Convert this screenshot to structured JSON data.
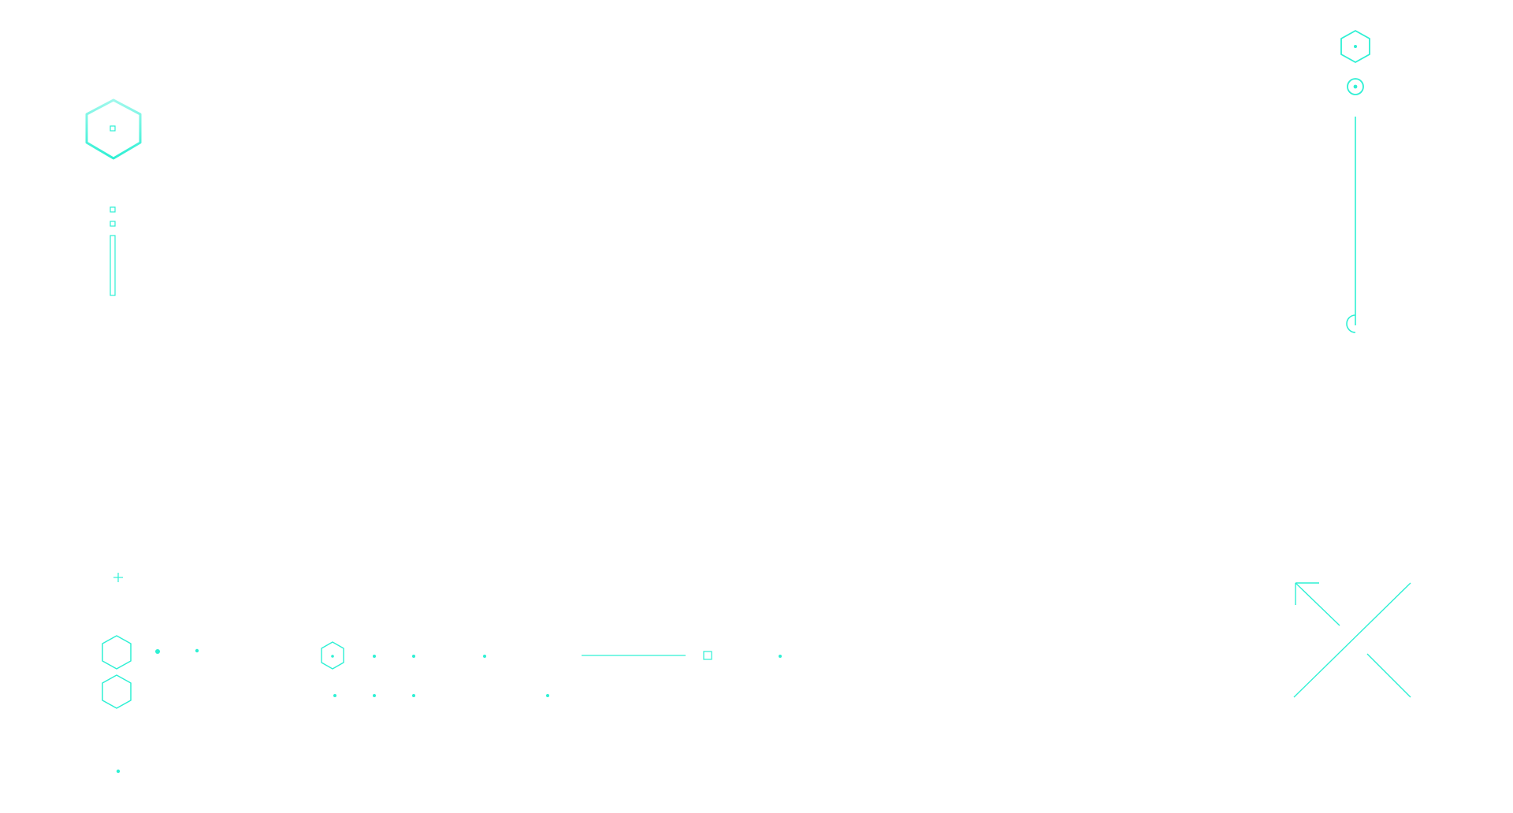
{
  "theme": {
    "accent": "#2EF0D4",
    "accent_soft": "#8FF7E8",
    "background": "#FFFFFF"
  },
  "hud": {
    "top_left_cluster": {
      "icons": [
        "hexagon-icon",
        "square-dot-icon",
        "square-marker-icon",
        "vertical-bar-icon"
      ]
    },
    "top_right_cluster": {
      "icons": [
        "hexagon-icon",
        "target-icon",
        "vertical-line-icon",
        "half-circle-icon"
      ]
    },
    "bottom_left_cluster": {
      "icons": [
        "plus-icon",
        "hexagon-icon",
        "dot-icon"
      ]
    },
    "bottom_center_cluster": {
      "icons": [
        "hexagon-icon",
        "dot-icon",
        "horizontal-line-icon",
        "square-icon"
      ]
    },
    "bottom_right_cluster": {
      "icons": [
        "diagonal-arrow-icon",
        "diagonal-line-icon"
      ]
    }
  }
}
